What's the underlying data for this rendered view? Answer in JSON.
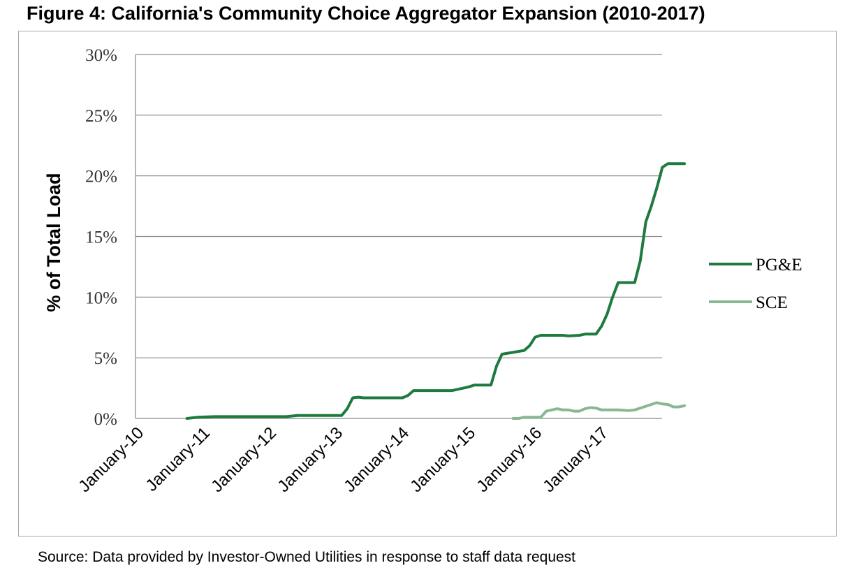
{
  "title": "Figure 4: California's Community Choice Aggregator Expansion (2010-2017)",
  "source": "Source: Data provided by Investor-Owned Utilities in response to staff data request",
  "chart_data": {
    "type": "line",
    "ylabel": "% of Total Load",
    "xlabel": "",
    "ylim": [
      0,
      30
    ],
    "yticks": [
      "0%",
      "5%",
      "10%",
      "15%",
      "20%",
      "25%",
      "30%"
    ],
    "x_tick_labels": [
      "January-10",
      "January-11",
      "January-12",
      "January-13",
      "January-14",
      "January-15",
      "January-16",
      "January-17"
    ],
    "grid": "horizontal",
    "legend_position": "right",
    "series": [
      {
        "name": "PG&E",
        "color": "#1e7a3e",
        "points": [
          [
            "2010-06",
            0.0
          ],
          [
            "2010-08",
            0.1
          ],
          [
            "2010-11",
            0.15
          ],
          [
            "2011-06",
            0.15
          ],
          [
            "2011-12",
            0.15
          ],
          [
            "2012-02",
            0.25
          ],
          [
            "2012-05",
            0.25
          ],
          [
            "2012-08",
            0.25
          ],
          [
            "2012-10",
            0.25
          ],
          [
            "2012-11",
            0.8
          ],
          [
            "2012-12",
            1.7
          ],
          [
            "2013-01",
            1.75
          ],
          [
            "2013-02",
            1.7
          ],
          [
            "2013-06",
            1.7
          ],
          [
            "2013-09",
            1.7
          ],
          [
            "2013-10",
            1.9
          ],
          [
            "2013-11",
            2.3
          ],
          [
            "2014-02",
            2.3
          ],
          [
            "2014-06",
            2.3
          ],
          [
            "2014-09",
            2.6
          ],
          [
            "2014-10",
            2.75
          ],
          [
            "2015-01",
            2.75
          ],
          [
            "2015-02",
            4.3
          ],
          [
            "2015-03",
            5.3
          ],
          [
            "2015-05",
            5.45
          ],
          [
            "2015-07",
            5.6
          ],
          [
            "2015-08",
            6.0
          ],
          [
            "2015-09",
            6.7
          ],
          [
            "2015-10",
            6.85
          ],
          [
            "2016-02",
            6.85
          ],
          [
            "2016-03",
            6.8
          ],
          [
            "2016-05",
            6.85
          ],
          [
            "2016-06",
            6.95
          ],
          [
            "2016-08",
            6.95
          ],
          [
            "2016-09",
            7.6
          ],
          [
            "2016-10",
            8.6
          ],
          [
            "2016-11",
            10.0
          ],
          [
            "2016-12",
            11.2
          ],
          [
            "2017-03",
            11.2
          ],
          [
            "2017-04",
            13.0
          ],
          [
            "2017-05",
            16.2
          ],
          [
            "2017-06",
            17.5
          ],
          [
            "2017-07",
            19.0
          ],
          [
            "2017-08",
            20.7
          ],
          [
            "2017-09",
            21.0
          ],
          [
            "2017-12",
            21.0
          ]
        ]
      },
      {
        "name": "SCE",
        "color": "#88b893",
        "points": [
          [
            "2015-05",
            0.0
          ],
          [
            "2015-06",
            0.0
          ],
          [
            "2015-07",
            0.1
          ],
          [
            "2015-09",
            0.1
          ],
          [
            "2015-10",
            0.1
          ],
          [
            "2015-11",
            0.6
          ],
          [
            "2016-01",
            0.8
          ],
          [
            "2016-02",
            0.7
          ],
          [
            "2016-03",
            0.7
          ],
          [
            "2016-04",
            0.6
          ],
          [
            "2016-05",
            0.6
          ],
          [
            "2016-06",
            0.8
          ],
          [
            "2016-07",
            0.9
          ],
          [
            "2016-08",
            0.85
          ],
          [
            "2016-09",
            0.7
          ],
          [
            "2016-12",
            0.7
          ],
          [
            "2017-02",
            0.65
          ],
          [
            "2017-03",
            0.7
          ],
          [
            "2017-05",
            1.0
          ],
          [
            "2017-07",
            1.3
          ],
          [
            "2017-08",
            1.2
          ],
          [
            "2017-09",
            1.15
          ],
          [
            "2017-10",
            0.95
          ],
          [
            "2017-11",
            0.95
          ],
          [
            "2017-12",
            1.05
          ]
        ]
      }
    ]
  }
}
